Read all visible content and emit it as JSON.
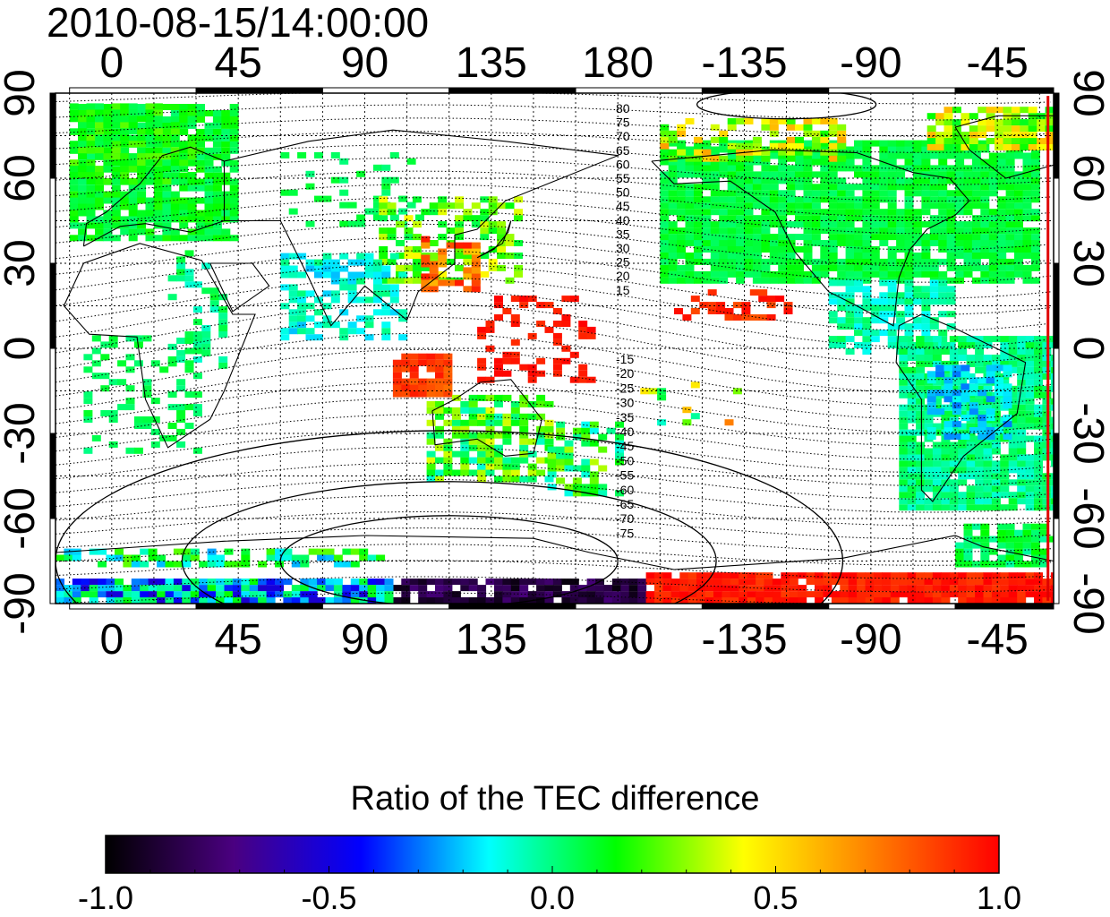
{
  "title": "2010-08-15/14:00:00",
  "map": {
    "lon_ticks_top": [
      "0",
      "45",
      "90",
      "135",
      "180",
      "-135",
      "-90",
      "-45"
    ],
    "lon_ticks_bottom": [
      "0",
      "45",
      "90",
      "135",
      "180",
      "-135",
      "-90",
      "-45"
    ],
    "lat_ticks_left": [
      "90",
      "60",
      "30",
      "0",
      "-30",
      "-60",
      "-90"
    ],
    "lat_ticks_right": [
      "90",
      "60",
      "30",
      "0",
      "-30",
      "-60",
      "-90"
    ],
    "lon_range": [
      -20,
      335
    ],
    "lat_range": [
      -90,
      90
    ],
    "grid": true,
    "contour_labels_north": [
      "80",
      "75",
      "70",
      "65",
      "60",
      "55",
      "50",
      "45",
      "40",
      "35",
      "30",
      "25",
      "20",
      "15"
    ],
    "contour_labels_south": [
      "-15",
      "-20",
      "-25",
      "-30",
      "-35",
      "-40",
      "-45",
      "-50",
      "-55",
      "-60",
      "-65",
      "-70",
      "-75"
    ],
    "terminator_line_color": "#e00000"
  },
  "colorbar": {
    "title": "Ratio of the TEC difference",
    "ticks": [
      "-1.0",
      "-0.5",
      "0.0",
      "0.5",
      "1.0"
    ],
    "range": [
      -1.0,
      1.0
    ],
    "colormap": [
      "#000000",
      "#4a0080",
      "#0000ff",
      "#00ffff",
      "#00ff00",
      "#ffff00",
      "#ff8000",
      "#ff0000"
    ]
  }
}
